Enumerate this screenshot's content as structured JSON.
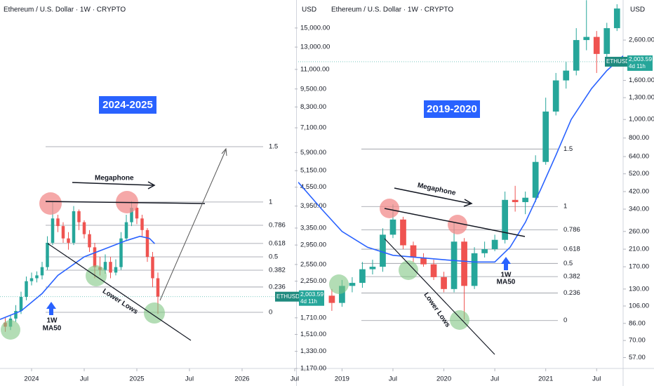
{
  "chart_data": [
    {
      "type": "candlestick",
      "title": "Ethereum / U.S. Dollar · 1W · CRYPTO",
      "currency": "USD",
      "log_scale": true,
      "grid": false,
      "up_color": "#26a69a",
      "down_color": "#ef5350",
      "ma_color": "#2962ff",
      "xlim": [
        2023.7,
        2026.5
      ],
      "ylim": [
        1170,
        18500
      ],
      "xticks": [
        2024,
        {
          "value": 2024.5,
          "label": "Jul"
        },
        2025,
        {
          "value": 2025.5,
          "label": "Jul"
        },
        2026,
        {
          "value": 2026.5,
          "label": "Jul"
        }
      ],
      "yticks": [
        {
          "value": 15000,
          "label": "15,000.00"
        },
        {
          "value": 13000,
          "label": "13,000.00"
        },
        {
          "value": 11000,
          "label": "11,000.00"
        },
        {
          "value": 9500,
          "label": "9,500.00"
        },
        {
          "value": 8300,
          "label": "8,300.00"
        },
        {
          "value": 7100,
          "label": "7,100.00"
        },
        {
          "value": 5900,
          "label": "5,900.00"
        },
        {
          "value": 5150,
          "label": "5,150.00"
        },
        {
          "value": 4550,
          "label": "4,550.00"
        },
        {
          "value": 3950,
          "label": "3,950.00"
        },
        {
          "value": 3350,
          "label": "3,350.00"
        },
        {
          "value": 2950,
          "label": "2,950.00"
        },
        {
          "value": 2550,
          "label": "2,550.00"
        },
        {
          "value": 2250,
          "label": "2,250.00"
        },
        {
          "value": 1710,
          "label": "1,710.00"
        },
        {
          "value": 1510,
          "label": "1,510.00"
        },
        {
          "value": 1330,
          "label": "1,330.00"
        },
        {
          "value": 1170,
          "label": "1,170.00"
        }
      ],
      "x": [
        2023.75,
        2023.8,
        2023.85,
        2023.9,
        2023.95,
        2024.0,
        2024.05,
        2024.1,
        2024.15,
        2024.2,
        2024.25,
        2024.3,
        2024.35,
        2024.4,
        2024.45,
        2024.5,
        2024.55,
        2024.6,
        2024.65,
        2024.7,
        2024.75,
        2024.8,
        2024.85,
        2024.9,
        2024.95,
        2025.0,
        2025.05,
        2025.1,
        2025.15,
        2025.2
      ],
      "open": [
        1650,
        1600,
        1700,
        1800,
        2000,
        2250,
        2300,
        2350,
        2500,
        3000,
        3600,
        3400,
        3100,
        3000,
        3800,
        3500,
        3200,
        2900,
        2500,
        2450,
        2600,
        2400,
        2500,
        3100,
        3500,
        3900,
        3600,
        3300,
        2700,
        2300
      ],
      "high": [
        1720,
        1750,
        1880,
        2080,
        2330,
        2400,
        2420,
        2600,
        3150,
        4090,
        3700,
        3500,
        3250,
        3950,
        3850,
        3550,
        3300,
        3000,
        2700,
        2750,
        2700,
        2650,
        3250,
        3700,
        4100,
        3950,
        3700,
        3350,
        2800,
        2400
      ],
      "low": [
        1540,
        1560,
        1660,
        1760,
        1950,
        2180,
        2230,
        2280,
        2450,
        2950,
        3250,
        3000,
        2850,
        2950,
        3300,
        3100,
        2800,
        2300,
        2350,
        2380,
        2300,
        2350,
        2450,
        3050,
        3400,
        3450,
        3150,
        2600,
        2150,
        1760
      ],
      "close": [
        1600,
        1700,
        1800,
        2000,
        2250,
        2300,
        2350,
        2500,
        3000,
        3600,
        3400,
        3100,
        3000,
        3800,
        3500,
        3200,
        2900,
        2500,
        2450,
        2600,
        2400,
        2500,
        3100,
        3500,
        3900,
        3600,
        3300,
        2700,
        2300,
        2003.59
      ],
      "ma_x": [
        2023.7,
        2023.9,
        2024.1,
        2024.25,
        2024.5,
        2024.7,
        2024.9,
        2025.03,
        2025.12,
        2025.17
      ],
      "ma_values": [
        1690,
        1800,
        2050,
        2350,
        2700,
        2870,
        3050,
        3150,
        3100,
        2980
      ],
      "fib_levels": [
        1.5,
        1,
        0.786,
        0.618,
        0.5,
        0.382,
        0.236,
        0
      ],
      "fib_prices": [
        6165,
        4071,
        3420,
        2985,
        2700,
        2443,
        2154,
        1782
      ],
      "price_tag": "ETHUSD",
      "last_price": {
        "value": 2003.59,
        "label": "2,003.59"
      },
      "countdown": "4d 11h",
      "annotations": {
        "period": "2024-2025",
        "megaphone": "Megaphone",
        "lower_lows": "Lower Lows",
        "ma_label_1": "1W",
        "ma_label_2": "MA50"
      }
    },
    {
      "type": "candlestick",
      "title": "Ethereum / U.S. Dollar · 1W · CRYPTO",
      "currency": "USD",
      "log_scale": true,
      "grid": false,
      "up_color": "#26a69a",
      "down_color": "#ef5350",
      "ma_color": "#2962ff",
      "xlim": [
        2018.57,
        2021.76
      ],
      "ylim": [
        50,
        4210
      ],
      "xticks": [
        2019,
        {
          "value": 2019.5,
          "label": "Jul"
        },
        2020,
        {
          "value": 2020.5,
          "label": "Jul"
        },
        2021,
        {
          "value": 2021.5,
          "label": "Jul"
        }
      ],
      "yticks": [
        {
          "value": 2600,
          "label": "2,600.00"
        },
        {
          "value": 1600,
          "label": "1,600.00"
        },
        {
          "value": 1300,
          "label": "1,300.00"
        },
        {
          "value": 1000,
          "label": "1,000.00"
        },
        {
          "value": 800,
          "label": "800.00"
        },
        {
          "value": 640,
          "label": "640.00"
        },
        {
          "value": 520,
          "label": "520.00"
        },
        {
          "value": 420,
          "label": "420.00"
        },
        {
          "value": 340,
          "label": "340.00"
        },
        {
          "value": 260,
          "label": "260.00"
        },
        {
          "value": 210,
          "label": "210.00"
        },
        {
          "value": 170,
          "label": "170.00"
        },
        {
          "value": 130,
          "label": "130.00"
        },
        {
          "value": 106,
          "label": "106.00"
        },
        {
          "value": 86,
          "label": "86.00"
        },
        {
          "value": 70,
          "label": "70.00"
        },
        {
          "value": 57,
          "label": "57.00"
        }
      ],
      "x": [
        2018.9,
        2019.0,
        2019.1,
        2019.2,
        2019.3,
        2019.4,
        2019.5,
        2019.6,
        2019.7,
        2019.8,
        2019.9,
        2020.0,
        2020.1,
        2020.2,
        2020.3,
        2020.4,
        2020.5,
        2020.6,
        2020.7,
        2020.8,
        2020.9,
        2021.0,
        2021.1,
        2021.2,
        2021.3,
        2021.4,
        2021.5,
        2021.6,
        2021.7
      ],
      "open": [
        120,
        110,
        135,
        140,
        165,
        170,
        250,
        300,
        220,
        190,
        175,
        150,
        130,
        230,
        135,
        200,
        210,
        235,
        380,
        370,
        390,
        600,
        1100,
        1600,
        1800,
        2600,
        2700,
        2200,
        3000
      ],
      "high": [
        130,
        145,
        150,
        180,
        185,
        270,
        360,
        310,
        230,
        200,
        185,
        160,
        290,
        240,
        215,
        230,
        250,
        420,
        450,
        420,
        650,
        1300,
        1750,
        2000,
        3000,
        4200,
        2900,
        3200,
        4000
      ],
      "low": [
        100,
        105,
        125,
        132,
        155,
        160,
        240,
        210,
        180,
        170,
        145,
        125,
        125,
        90,
        130,
        190,
        205,
        225,
        330,
        320,
        370,
        580,
        1050,
        1450,
        1700,
        2300,
        1750,
        2100,
        2900
      ],
      "close": [
        110,
        135,
        140,
        165,
        170,
        250,
        300,
        220,
        190,
        175,
        150,
        130,
        230,
        135,
        200,
        210,
        235,
        380,
        370,
        390,
        600,
        1100,
        1600,
        1800,
        2600,
        2700,
        2200,
        3000,
        3800
      ],
      "ma_x": [
        2018.57,
        2018.8,
        2019.0,
        2019.25,
        2019.5,
        2019.75,
        2020.0,
        2020.3,
        2020.5,
        2020.65,
        2020.8,
        2020.95,
        2021.1,
        2021.25,
        2021.45,
        2021.6,
        2021.76
      ],
      "ma_values": [
        470,
        340,
        260,
        215,
        195,
        190,
        185,
        180,
        180,
        215,
        290,
        430,
        650,
        1000,
        1450,
        1800,
        2150
      ],
      "fib_levels": [
        1.5,
        1,
        0.786,
        0.618,
        0.5,
        0.382,
        0.236,
        0
      ],
      "fib_prices": [
        701,
        351,
        265,
        210,
        177,
        151,
        124,
        89
      ],
      "price_tag": "ETHUSD",
      "last_price": {
        "value": 2003.59,
        "label": "2,003.59"
      },
      "countdown": "4d 11h",
      "annotations": {
        "period": "2019-2020",
        "megaphone": "Megaphone",
        "lower_lows": "Lower Lows",
        "ma_label_1": "1W",
        "ma_label_2": "MA50"
      }
    }
  ]
}
